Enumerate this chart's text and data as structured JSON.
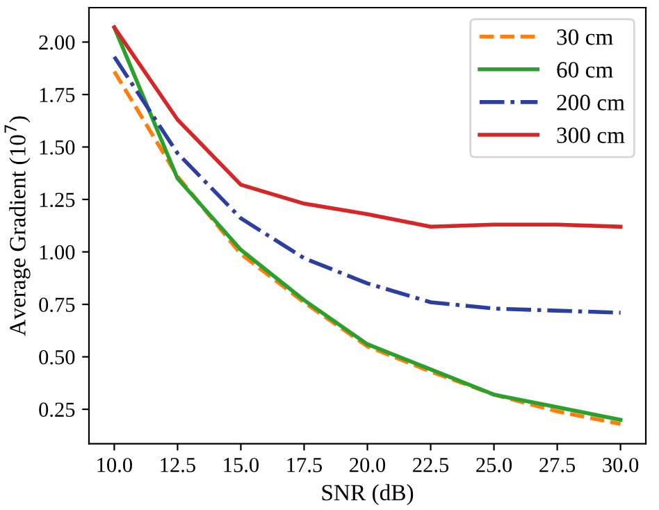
{
  "chart_data": {
    "type": "line",
    "xlabel": "SNR (dB)",
    "ylabel": "Average Gradient (10$^{7}$)",
    "x": [
      10,
      12.5,
      15,
      17.5,
      20,
      22.5,
      25,
      27.5,
      30
    ],
    "series": [
      {
        "name": "30 cm",
        "color": "#ff7f0e",
        "line_style": "dashed",
        "values": [
          1.86,
          1.36,
          0.99,
          0.76,
          0.55,
          0.43,
          0.32,
          0.24,
          0.18
        ]
      },
      {
        "name": "60 cm",
        "color": "#2ca02c",
        "line_style": "solid",
        "values": [
          2.07,
          1.35,
          1.01,
          0.77,
          0.56,
          0.44,
          0.32,
          0.26,
          0.2
        ]
      },
      {
        "name": "200 cm",
        "color": "#2c3fa0",
        "line_style": "dashdot",
        "values": [
          1.93,
          1.47,
          1.16,
          0.97,
          0.85,
          0.76,
          0.73,
          0.72,
          0.71
        ]
      },
      {
        "name": "300 cm",
        "color": "#d62728",
        "line_style": "solid",
        "values": [
          2.07,
          1.63,
          1.32,
          1.23,
          1.18,
          1.12,
          1.13,
          1.13,
          1.12
        ]
      }
    ],
    "xlim": [
      9.0,
      31.0
    ],
    "ylim": [
      0.086,
      2.164
    ],
    "xticks": [
      {
        "value": 10,
        "label": "10.0"
      },
      {
        "value": 12.5,
        "label": "12.5"
      },
      {
        "value": 15,
        "label": "15.0"
      },
      {
        "value": 17.5,
        "label": "17.5"
      },
      {
        "value": 20,
        "label": "20.0"
      },
      {
        "value": 22.5,
        "label": "22.5"
      },
      {
        "value": 25,
        "label": "25.0"
      },
      {
        "value": 27.5,
        "label": "27.5"
      },
      {
        "value": 30,
        "label": "30.0"
      }
    ],
    "yticks": [
      {
        "value": 0.25,
        "label": "0.25"
      },
      {
        "value": 0.5,
        "label": "0.50"
      },
      {
        "value": 0.75,
        "label": "0.75"
      },
      {
        "value": 1.0,
        "label": "1.00"
      },
      {
        "value": 1.25,
        "label": "1.25"
      },
      {
        "value": 1.5,
        "label": "1.50"
      },
      {
        "value": 1.75,
        "label": "1.75"
      },
      {
        "value": 2.0,
        "label": "2.00"
      }
    ],
    "legend": "top right",
    "grid": false
  }
}
